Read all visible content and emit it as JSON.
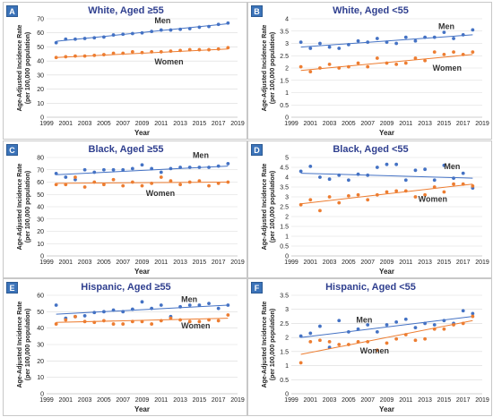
{
  "chart_data": [
    {
      "letter": "A",
      "type": "scatter",
      "title": "White, Aged ≥55",
      "xlabel": "Year",
      "ylabel": "Age-Adjusted Incidence Rate (per 100,000 population)",
      "xlim": [
        1999,
        2019
      ],
      "xticks": [
        1999,
        2001,
        2003,
        2005,
        2007,
        2009,
        2011,
        2013,
        2015,
        2017,
        2019
      ],
      "ylim": [
        0,
        70
      ],
      "yticks": [
        0,
        10,
        20,
        30,
        40,
        50,
        60,
        70
      ],
      "x": [
        2000,
        2001,
        2002,
        2003,
        2004,
        2005,
        2006,
        2007,
        2008,
        2009,
        2010,
        2011,
        2012,
        2013,
        2014,
        2015,
        2016,
        2017,
        2018
      ],
      "series": [
        {
          "name": "Men",
          "color": "#4472c4",
          "values": [
            53,
            55.5,
            55.5,
            56,
            56.5,
            57,
            58.5,
            59,
            59.5,
            60,
            61,
            62,
            62,
            62.5,
            63,
            64,
            64.5,
            66,
            67
          ],
          "trend": [
            54,
            66.5
          ]
        },
        {
          "name": "Women",
          "color": "#ed7d31",
          "values": [
            42.5,
            43,
            43.5,
            43.5,
            44,
            44.5,
            45.5,
            45.5,
            46.5,
            46,
            46.5,
            46.5,
            47,
            47.5,
            48,
            48,
            48,
            48.5,
            49.5
          ],
          "trend": [
            42.5,
            48.5
          ]
        }
      ]
    },
    {
      "letter": "B",
      "type": "scatter",
      "title": "White, Aged <55",
      "xlabel": "Year",
      "ylabel": "Age-Adjusted Incidence Rate (per 100,000 population)",
      "xlim": [
        1999,
        2019
      ],
      "xticks": [
        1999,
        2001,
        2003,
        2005,
        2007,
        2009,
        2011,
        2013,
        2015,
        2017,
        2019
      ],
      "ylim": [
        0,
        4
      ],
      "yticks": [
        0,
        0.5,
        1,
        1.5,
        2,
        2.5,
        3,
        3.5,
        4
      ],
      "x": [
        2000,
        2001,
        2002,
        2003,
        2004,
        2005,
        2006,
        2007,
        2008,
        2009,
        2010,
        2011,
        2012,
        2013,
        2014,
        2015,
        2016,
        2017,
        2018
      ],
      "series": [
        {
          "name": "Men",
          "color": "#4472c4",
          "values": [
            3.05,
            2.8,
            3.0,
            2.85,
            2.8,
            2.95,
            3.1,
            3.05,
            3.2,
            3.05,
            3.0,
            3.25,
            3.1,
            3.25,
            3.25,
            3.45,
            3.2,
            3.35,
            3.55
          ],
          "trend": [
            2.85,
            3.35
          ]
        },
        {
          "name": "Women",
          "color": "#ed7d31",
          "values": [
            2.05,
            1.85,
            2.0,
            2.15,
            2.0,
            2.05,
            2.2,
            2.05,
            2.4,
            2.2,
            2.15,
            2.2,
            2.4,
            2.3,
            2.65,
            2.55,
            2.65,
            2.55,
            2.65
          ],
          "trend": [
            1.9,
            2.55
          ]
        }
      ]
    },
    {
      "letter": "C",
      "type": "scatter",
      "title": "Black, Aged ≥55",
      "xlabel": "Year",
      "ylabel": "Age-Adjusted Incidence Rate (per 100,000 population)",
      "xlim": [
        1999,
        2019
      ],
      "xticks": [
        1999,
        2001,
        2003,
        2005,
        2007,
        2009,
        2011,
        2013,
        2015,
        2017,
        2019
      ],
      "ylim": [
        0,
        80
      ],
      "yticks": [
        0,
        10,
        20,
        30,
        40,
        50,
        60,
        70,
        80
      ],
      "x": [
        2000,
        2001,
        2002,
        2003,
        2004,
        2005,
        2006,
        2007,
        2008,
        2009,
        2010,
        2011,
        2012,
        2013,
        2014,
        2015,
        2016,
        2017,
        2018
      ],
      "series": [
        {
          "name": "Men",
          "color": "#4472c4",
          "values": [
            67,
            64,
            62,
            70,
            68,
            70,
            70,
            70,
            71,
            74,
            71,
            68,
            71,
            72,
            72,
            72,
            72,
            73,
            75
          ],
          "trend": [
            66,
            73
          ]
        },
        {
          "name": "Women",
          "color": "#ed7d31",
          "values": [
            58,
            58,
            64,
            56,
            60,
            58,
            62,
            57,
            60,
            57,
            59,
            64,
            61,
            58,
            60,
            61,
            57,
            59,
            60
          ],
          "trend": [
            59,
            60
          ]
        }
      ]
    },
    {
      "letter": "D",
      "type": "scatter",
      "title": "Black, Aged <55",
      "xlabel": "Year",
      "ylabel": "Age-Adjusted Incidence Rate (per 100,000 population)",
      "xlim": [
        1999,
        2019
      ],
      "xticks": [
        1999,
        2001,
        2003,
        2005,
        2007,
        2009,
        2011,
        2013,
        2015,
        2017,
        2019
      ],
      "ylim": [
        0,
        5
      ],
      "yticks": [
        0,
        0.5,
        1,
        1.5,
        2,
        2.5,
        3,
        3.5,
        4,
        4.5,
        5
      ],
      "x": [
        2000,
        2001,
        2002,
        2003,
        2004,
        2005,
        2006,
        2007,
        2008,
        2009,
        2010,
        2011,
        2012,
        2013,
        2014,
        2015,
        2016,
        2017,
        2018
      ],
      "series": [
        {
          "name": "Men",
          "color": "#4472c4",
          "values": [
            4.3,
            4.55,
            4.0,
            3.9,
            4.1,
            3.85,
            4.15,
            4.1,
            4.5,
            4.65,
            4.65,
            3.85,
            4.35,
            4.4,
            3.85,
            4.6,
            3.95,
            4.2,
            3.45
          ],
          "trend": [
            4.2,
            3.95
          ]
        },
        {
          "name": "Women",
          "color": "#ed7d31",
          "values": [
            2.6,
            2.85,
            2.3,
            3.0,
            2.7,
            3.05,
            3.1,
            2.85,
            3.1,
            3.25,
            3.3,
            3.3,
            3.0,
            3.1,
            3.5,
            3.25,
            3.65,
            3.65,
            3.55
          ],
          "trend": [
            2.65,
            3.65
          ]
        }
      ]
    },
    {
      "letter": "E",
      "type": "scatter",
      "title": "Hispanic, Aged ≥55",
      "xlabel": "Year",
      "ylabel": "Age-Adjusted Incidence Rate (per 100,000 population)",
      "xlim": [
        1999,
        2019
      ],
      "xticks": [
        1999,
        2001,
        2003,
        2005,
        2007,
        2009,
        2011,
        2013,
        2015,
        2017,
        2019
      ],
      "ylim": [
        0,
        60
      ],
      "yticks": [
        0,
        10,
        20,
        30,
        40,
        50,
        60
      ],
      "x": [
        2000,
        2001,
        2002,
        2003,
        2004,
        2005,
        2006,
        2007,
        2008,
        2009,
        2010,
        2011,
        2012,
        2013,
        2014,
        2015,
        2016,
        2017,
        2018
      ],
      "series": [
        {
          "name": "Men",
          "color": "#4472c4",
          "values": [
            54,
            46,
            47,
            47.5,
            49.5,
            50,
            51,
            50,
            51.5,
            56,
            52,
            54,
            47,
            53,
            54,
            54,
            55,
            52,
            54
          ],
          "trend": [
            48.5,
            54
          ]
        },
        {
          "name": "Women",
          "color": "#ed7d31",
          "values": [
            42.5,
            45,
            47,
            44,
            43.5,
            44.5,
            42.5,
            42.5,
            44,
            44,
            42.5,
            44.5,
            46,
            45,
            44,
            44,
            45,
            44.5,
            48
          ],
          "trend": [
            43.5,
            46
          ]
        }
      ]
    },
    {
      "letter": "F",
      "type": "scatter",
      "title": "Hispanic, Aged <55",
      "xlabel": "Year",
      "ylabel": "Age-Adjusted Incidence Rate (per 100,000 population)",
      "xlim": [
        1999,
        2019
      ],
      "xticks": [
        1999,
        2001,
        2003,
        2005,
        2007,
        2009,
        2011,
        2013,
        2015,
        2017,
        2019
      ],
      "ylim": [
        0,
        3.5
      ],
      "yticks": [
        0,
        0.5,
        1,
        1.5,
        2,
        2.5,
        3,
        3.5
      ],
      "x": [
        2000,
        2001,
        2002,
        2003,
        2004,
        2005,
        2006,
        2007,
        2008,
        2009,
        2010,
        2011,
        2012,
        2013,
        2014,
        2015,
        2016,
        2017,
        2018
      ],
      "series": [
        {
          "name": "Men",
          "color": "#4472c4",
          "values": [
            2.05,
            2.15,
            2.4,
            1.65,
            2.6,
            2.2,
            2.3,
            2.45,
            2.2,
            2.45,
            2.55,
            2.65,
            2.35,
            2.5,
            2.45,
            2.6,
            2.5,
            2.95,
            2.85
          ],
          "trend": [
            2.0,
            2.75
          ]
        },
        {
          "name": "Women",
          "color": "#ed7d31",
          "values": [
            1.1,
            1.85,
            1.9,
            1.85,
            1.75,
            1.75,
            1.85,
            1.85,
            1.55,
            1.8,
            1.95,
            2.1,
            1.9,
            1.95,
            2.3,
            2.3,
            2.45,
            2.5,
            2.75
          ],
          "trend": [
            1.4,
            2.6
          ]
        }
      ]
    }
  ]
}
